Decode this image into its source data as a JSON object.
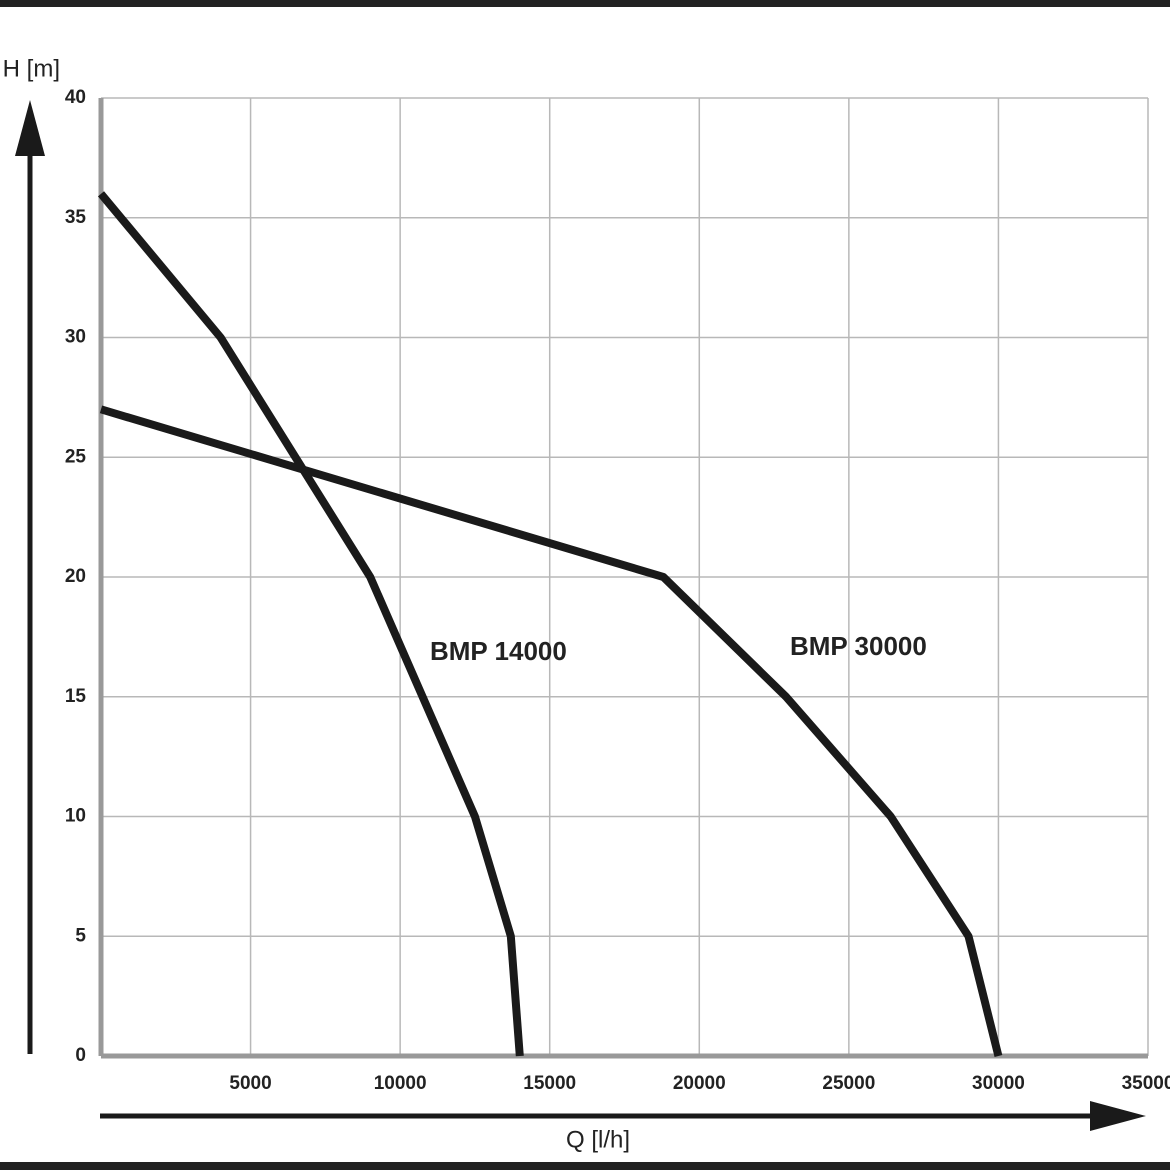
{
  "chart_data": {
    "type": "line",
    "x_label": "Q [l/h]",
    "y_label": "H [m]",
    "xlim": [
      0,
      35000
    ],
    "ylim": [
      0,
      40
    ],
    "xticks": [
      5000,
      10000,
      15000,
      20000,
      25000,
      30000,
      35000
    ],
    "yticks": [
      0,
      5,
      10,
      15,
      20,
      25,
      30,
      35,
      40
    ],
    "grid": true,
    "series": [
      {
        "name": "BMP 14000",
        "color": "#1a1a1a",
        "x": [
          0,
          4000,
          9000,
          12500,
          13700,
          14000
        ],
        "values": [
          36,
          30,
          20,
          10,
          5,
          0
        ]
      },
      {
        "name": "BMP 30000",
        "color": "#1a1a1a",
        "x": [
          0,
          18800,
          22900,
          26400,
          29000,
          30000
        ],
        "values": [
          27,
          20,
          15,
          10,
          5,
          0
        ]
      }
    ]
  }
}
